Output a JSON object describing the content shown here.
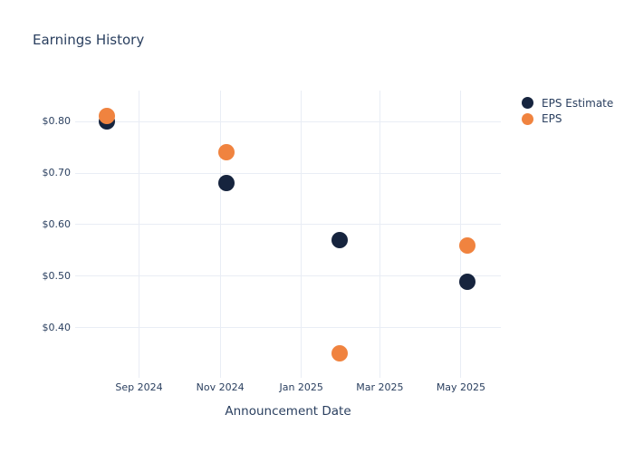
{
  "title": "Earnings History",
  "chart_data": {
    "type": "scatter",
    "title": "Earnings History",
    "xlabel": "Announcement Date",
    "ylabel": "",
    "x_dates": [
      "2024-08-08",
      "2024-11-06",
      "2025-01-30",
      "2025-05-06"
    ],
    "series": [
      {
        "name": "EPS Estimate",
        "color": "#16243e",
        "values": [
          0.8,
          0.68,
          0.57,
          0.49
        ]
      },
      {
        "name": "EPS",
        "color": "#f0833f",
        "values": [
          0.81,
          0.74,
          0.35,
          0.56
        ]
      }
    ],
    "x_ticks": [
      {
        "date": "2024-09-01",
        "label": "Sep 2024"
      },
      {
        "date": "2024-11-01",
        "label": "Nov 2024"
      },
      {
        "date": "2025-01-01",
        "label": "Jan 2025"
      },
      {
        "date": "2025-03-01",
        "label": "Mar 2025"
      },
      {
        "date": "2025-05-01",
        "label": "May 2025"
      }
    ],
    "y_ticks": [
      {
        "value": 0.4,
        "label": "$0.40"
      },
      {
        "value": 0.5,
        "label": "$0.50"
      },
      {
        "value": 0.6,
        "label": "$0.60"
      },
      {
        "value": 0.7,
        "label": "$0.70"
      },
      {
        "value": 0.8,
        "label": "$0.80"
      }
    ],
    "x_range": [
      "2024-07-15",
      "2025-05-31"
    ],
    "y_range": [
      0.303,
      0.86
    ],
    "grid": true,
    "legend_position": "top-right-outside"
  },
  "legend": {
    "items": [
      {
        "label": "EPS Estimate",
        "color": "#16243e"
      },
      {
        "label": "EPS",
        "color": "#f0833f"
      }
    ]
  },
  "theme": {
    "text_color": "#2a3f5f",
    "grid_color": "#e9edf5",
    "background": "#ffffff"
  }
}
